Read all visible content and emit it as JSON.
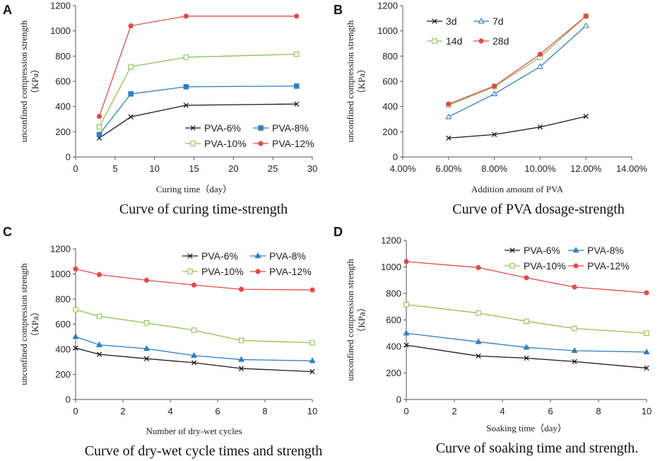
{
  "colors": {
    "s6": "#1a1a1a",
    "s8": "#2f7fc1",
    "s10": "#8dc252",
    "s12": "#e04b4b"
  },
  "chart_data": [
    {
      "type": "line",
      "panel": "A",
      "caption": "Curve of curing time-strength",
      "xlabel": "Curing time（day）",
      "ylabel": [
        "unconfined compression strength",
        "（KPa）"
      ],
      "xlim": [
        0,
        30
      ],
      "ylim": [
        0,
        1200
      ],
      "xticks": [
        0,
        5,
        10,
        15,
        20,
        25,
        30
      ],
      "xticklabels": [
        "0",
        "5",
        "10",
        "15",
        "20",
        "25",
        "30"
      ],
      "yticks": [
        0,
        200,
        400,
        600,
        800,
        1000,
        1200
      ],
      "legend_cols": 2,
      "legend_position": "bottom-right",
      "series": [
        {
          "name": "PVA-6%",
          "marker": "x",
          "color": "#1a1a1a",
          "x": [
            3,
            7,
            14,
            28
          ],
          "values": [
            150,
            318,
            410,
            420
          ]
        },
        {
          "name": "PVA-8%",
          "marker": "square-filled",
          "color": "#2f7fc1",
          "x": [
            3,
            7,
            14,
            28
          ],
          "values": [
            178,
            500,
            557,
            562
          ]
        },
        {
          "name": "PVA-10%",
          "marker": "square-open",
          "color": "#8dc252",
          "x": [
            3,
            7,
            14,
            28
          ],
          "values": [
            237,
            716,
            791,
            815
          ]
        },
        {
          "name": "PVA-12%",
          "marker": "circle",
          "color": "#e04b4b",
          "x": [
            3,
            7,
            14,
            28
          ],
          "values": [
            322,
            1040,
            1117,
            1117
          ]
        }
      ]
    },
    {
      "type": "line",
      "panel": "B",
      "caption": "Curve of PVA dosage-strength",
      "xlabel": "Addition amount of PVA",
      "ylabel": [
        "unconfined compression strength",
        "（KPa）"
      ],
      "xlim": [
        4,
        14
      ],
      "ylim": [
        0,
        1200
      ],
      "xticks": [
        4,
        6,
        8,
        10,
        12,
        14
      ],
      "xticklabels": [
        "4.00%",
        "6.00%",
        "8.00%",
        "10.00%",
        "12.00%",
        "14.00%"
      ],
      "yticks": [
        0,
        200,
        400,
        600,
        800,
        1000,
        1200
      ],
      "legend_cols": 2,
      "legend_position": "top-left",
      "series": [
        {
          "name": "3d",
          "marker": "x",
          "color": "#1a1a1a",
          "x": [
            6,
            8,
            10,
            12
          ],
          "values": [
            150,
            178,
            237,
            322
          ]
        },
        {
          "name": "7d",
          "marker": "triangle-open",
          "color": "#2f7fc1",
          "x": [
            6,
            8,
            10,
            12
          ],
          "values": [
            318,
            500,
            716,
            1040
          ]
        },
        {
          "name": "14d",
          "marker": "square-open",
          "color": "#8dc252",
          "x": [
            6,
            8,
            10,
            12
          ],
          "values": [
            410,
            557,
            791,
            1117
          ]
        },
        {
          "name": "28d",
          "marker": "circle",
          "color": "#e04b4b",
          "x": [
            6,
            8,
            10,
            12
          ],
          "values": [
            420,
            562,
            815,
            1117
          ]
        }
      ]
    },
    {
      "type": "line",
      "panel": "C",
      "caption": "Curve of dry-wet cycle times and strength",
      "xlabel": "Number of dry-wet cycles",
      "ylabel": [
        "unconfined compression strength",
        "（KPa）"
      ],
      "xlim": [
        0,
        10
      ],
      "ylim": [
        0,
        1200
      ],
      "xticks": [
        0,
        2,
        4,
        6,
        8,
        10
      ],
      "xticklabels": [
        "0",
        "2",
        "4",
        "6",
        "8",
        "10"
      ],
      "yticks": [
        0,
        200,
        400,
        600,
        800,
        1000,
        1200
      ],
      "legend_cols": 2,
      "legend_position": "top-right",
      "series": [
        {
          "name": "PVA-6%",
          "marker": "x",
          "color": "#1a1a1a",
          "x": [
            0,
            1,
            3,
            5,
            7,
            10
          ],
          "values": [
            410,
            360,
            325,
            293,
            247,
            222
          ]
        },
        {
          "name": "PVA-8%",
          "marker": "triangle-filled",
          "color": "#2f7fc1",
          "x": [
            0,
            1,
            3,
            5,
            7,
            10
          ],
          "values": [
            500,
            435,
            405,
            350,
            318,
            308
          ]
        },
        {
          "name": "PVA-10%",
          "marker": "square-open",
          "color": "#8dc252",
          "x": [
            0,
            1,
            3,
            5,
            7,
            10
          ],
          "values": [
            716,
            663,
            610,
            552,
            470,
            452
          ]
        },
        {
          "name": "PVA-12%",
          "marker": "circle",
          "color": "#e04b4b",
          "x": [
            0,
            1,
            3,
            5,
            7,
            10
          ],
          "values": [
            1040,
            995,
            950,
            912,
            878,
            873
          ]
        }
      ]
    },
    {
      "type": "line",
      "panel": "D",
      "caption": "Curve of soaking time and strength.",
      "xlabel": "Soaking time（day）",
      "ylabel": [
        "unconfined compression strength",
        "（KPa）"
      ],
      "xlim": [
        0,
        10
      ],
      "ylim": [
        0,
        1200
      ],
      "xticks": [
        0,
        2,
        4,
        6,
        8,
        10
      ],
      "xticklabels": [
        "0",
        "2",
        "4",
        "6",
        "8",
        "10"
      ],
      "yticks": [
        0,
        200,
        400,
        600,
        800,
        1000,
        1200
      ],
      "legend_cols": 2,
      "legend_position": "top-right",
      "series": [
        {
          "name": "PVA-6%",
          "marker": "x",
          "color": "#1a1a1a",
          "x": [
            0,
            3,
            5,
            7,
            10
          ],
          "values": [
            410,
            328,
            312,
            286,
            237
          ]
        },
        {
          "name": "PVA-8%",
          "marker": "triangle-filled",
          "color": "#2f7fc1",
          "x": [
            0,
            3,
            5,
            7,
            10
          ],
          "values": [
            500,
            435,
            393,
            368,
            358
          ]
        },
        {
          "name": "PVA-10%",
          "marker": "square-open",
          "color": "#8dc252",
          "x": [
            0,
            3,
            5,
            7,
            10
          ],
          "values": [
            716,
            652,
            590,
            536,
            500
          ]
        },
        {
          "name": "PVA-12%",
          "marker": "circle",
          "color": "#e04b4b",
          "x": [
            0,
            3,
            5,
            7,
            10
          ],
          "values": [
            1040,
            995,
            918,
            848,
            805
          ]
        }
      ]
    }
  ]
}
